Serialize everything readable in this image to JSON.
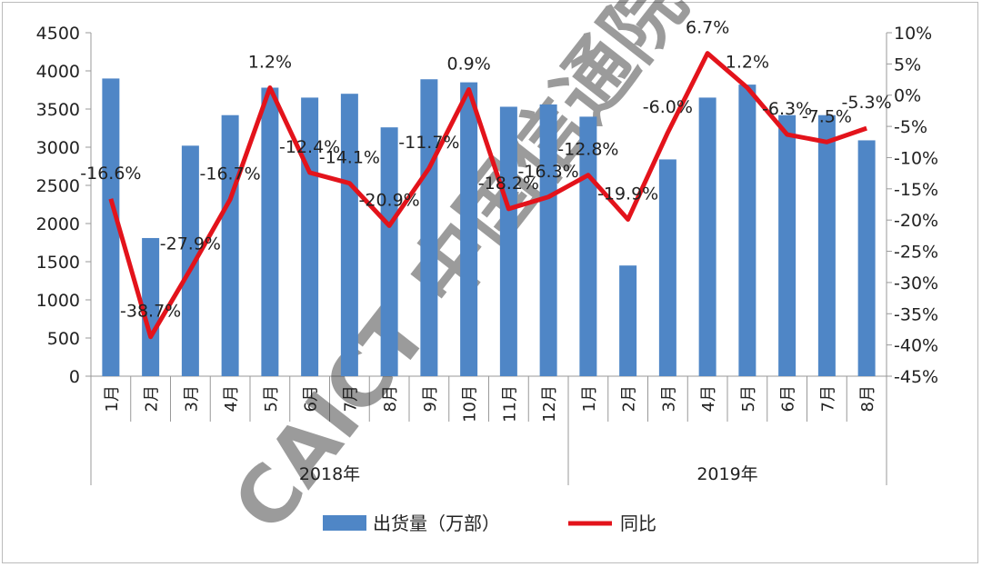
{
  "chart_data": {
    "type": "bar+line",
    "title": "",
    "categories": [
      "1月",
      "2月",
      "3月",
      "4月",
      "5月",
      "6月",
      "7月",
      "8月",
      "9月",
      "10月",
      "11月",
      "12月",
      "1月",
      "2月",
      "3月",
      "4月",
      "5月",
      "6月",
      "7月",
      "8月"
    ],
    "groups": [
      {
        "label": "2018年",
        "count": 12
      },
      {
        "label": "2019年",
        "count": 8
      }
    ],
    "series": [
      {
        "name": "出货量（万部）",
        "type": "bar",
        "axis": "left",
        "color": "#4f86c6",
        "values": [
          3900,
          1810,
          3020,
          3420,
          3780,
          3650,
          3700,
          3260,
          3890,
          3850,
          3530,
          3560,
          3400,
          1450,
          2840,
          3650,
          3820,
          3420,
          3420,
          3090
        ]
      },
      {
        "name": "同比",
        "type": "line",
        "axis": "right",
        "color": "#e3131b",
        "values": [
          -16.6,
          -38.7,
          -27.9,
          -16.7,
          1.2,
          -12.4,
          -14.1,
          -20.9,
          -11.7,
          0.9,
          -18.2,
          -16.3,
          -12.8,
          -19.9,
          -6.0,
          6.7,
          1.2,
          -6.3,
          -7.5,
          -5.3
        ],
        "labels": [
          "-16.6%",
          "-38.7%",
          "-27.9%",
          "-16.7%",
          "1.2%",
          "-12.4%",
          "-14.1%",
          "-20.9%",
          "-11.7%",
          "0.9%",
          "-18.2%",
          "-16.3%",
          "-12.8%",
          "-19.9%",
          "-6.0%",
          "6.7%",
          "1.2%",
          "-6.3%",
          "-7.5%",
          "-5.3%"
        ]
      }
    ],
    "y_left": {
      "range": [
        0,
        4500
      ],
      "ticks": [
        "0",
        "500",
        "1000",
        "1500",
        "2000",
        "2500",
        "3000",
        "3500",
        "4000",
        "4500"
      ]
    },
    "y_right": {
      "range": [
        -45,
        10
      ],
      "ticks": [
        "-45%",
        "-40%",
        "-35%",
        "-30%",
        "-25%",
        "-20%",
        "-15%",
        "-10%",
        "-5%",
        "0%",
        "5%",
        "10%"
      ]
    },
    "grid": false,
    "legend": "bottom",
    "watermark": "CAICT 中国信通院"
  }
}
